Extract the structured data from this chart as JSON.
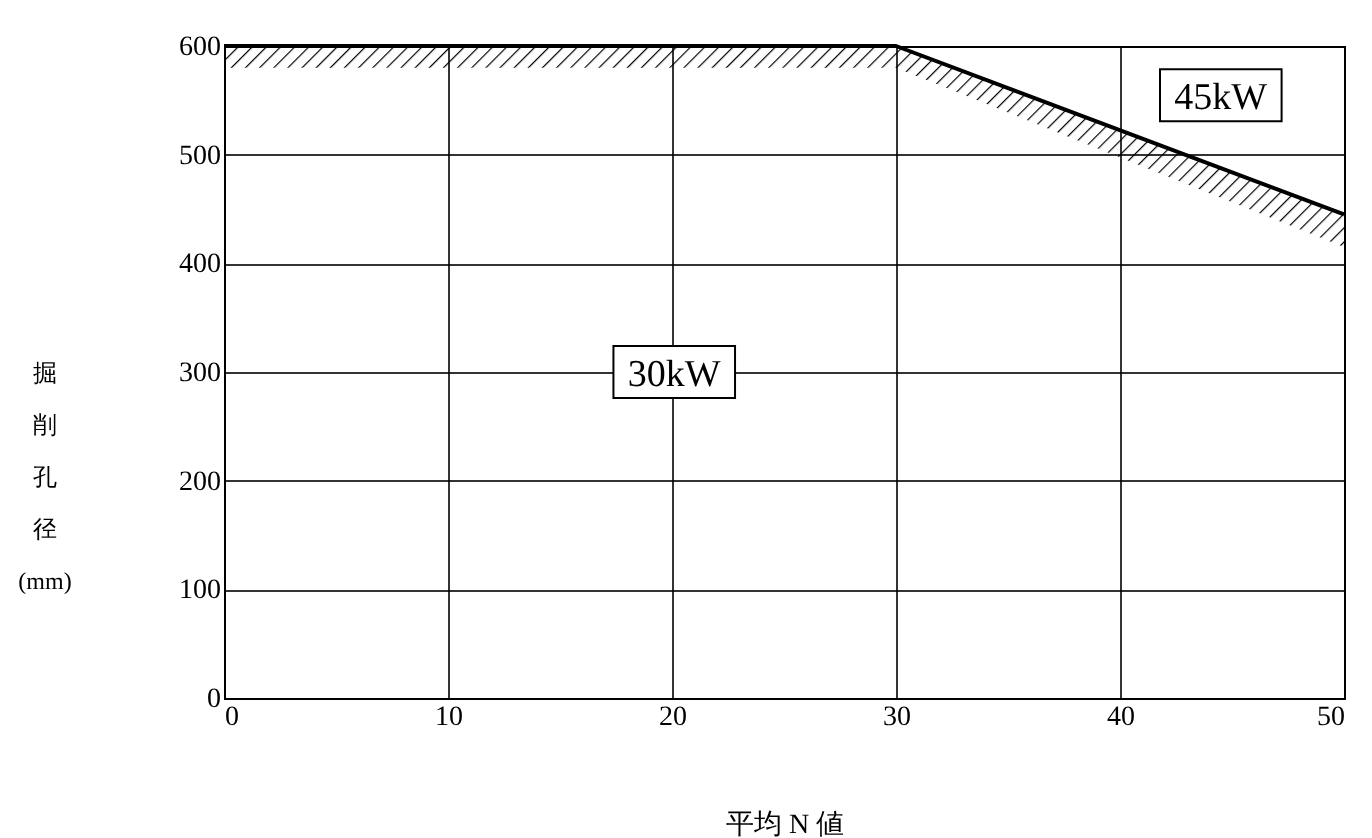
{
  "chart_data": {
    "type": "line",
    "xlabel": "平均 N 値",
    "ylabel": "掘削孔径(mm)",
    "x": [
      0,
      30,
      50
    ],
    "series": [
      {
        "color": "#000000",
        "values": [
          600,
          600,
          445
        ],
        "lower": [
          580,
          580,
          415
        ],
        "upper": [
          600,
          600,
          445
        ]
      }
    ],
    "xlim": [
      0,
      50
    ],
    "xticks": [
      0,
      10,
      20,
      30,
      40,
      50
    ],
    "ylim": [
      0,
      600
    ],
    "yticks": [
      0,
      100,
      200,
      300,
      400,
      500,
      600
    ],
    "grid": true,
    "marker": "none",
    "line_style": "solid",
    "annotations": [
      "30kW",
      "45kW"
    ]
  }
}
